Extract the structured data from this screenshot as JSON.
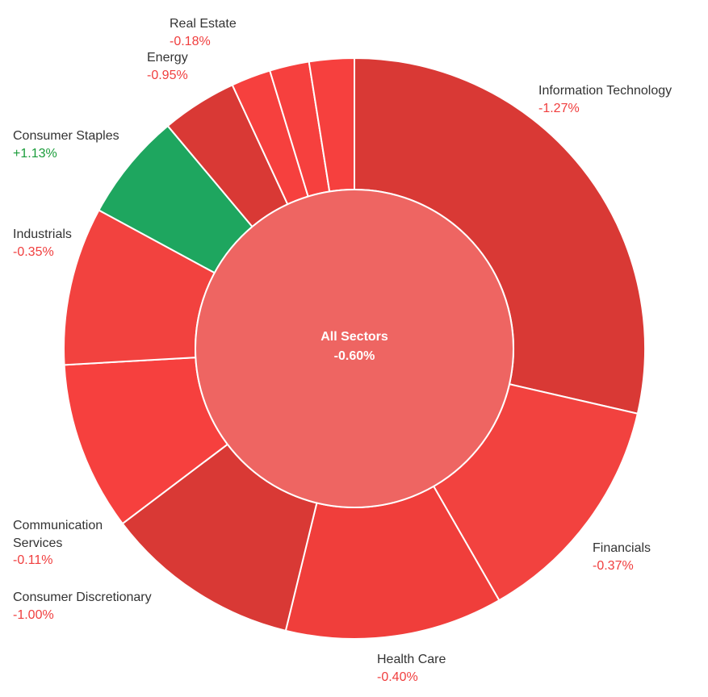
{
  "chart_data": {
    "type": "pie",
    "center": {
      "label": "All Sectors",
      "value": "-0.60%",
      "color": "#ee6562"
    },
    "colors": {
      "positive": "#1ea65f",
      "negative_text": "#f03e3e",
      "positive_text": "#1a9c3a"
    },
    "segments": [
      {
        "name": "Information Technology",
        "value_text": "-1.27%",
        "change": -1.27,
        "weight": 28.6,
        "color": "#d93935"
      },
      {
        "name": "Financials",
        "value_text": "-0.37%",
        "change": -0.37,
        "weight": 13.1,
        "color": "#f2423f"
      },
      {
        "name": "Health Care",
        "value_text": "-0.40%",
        "change": -0.4,
        "weight": 12.1,
        "color": "#f03e3b"
      },
      {
        "name": "Consumer Discretionary",
        "value_text": "-1.00%",
        "change": -1.0,
        "weight": 10.9,
        "color": "#d93935"
      },
      {
        "name": "Communication Services",
        "value_text": "-0.11%",
        "change": -0.11,
        "weight": 9.4,
        "color": "#f6403e"
      },
      {
        "name": "Industrials",
        "value_text": "-0.35%",
        "change": -0.35,
        "weight": 8.8,
        "color": "#f2423f"
      },
      {
        "name": "Consumer Staples",
        "value_text": "+1.13%",
        "change": 1.13,
        "weight": 6.0,
        "color": "#1ea65f"
      },
      {
        "name": "Energy",
        "value_text": "-0.95%",
        "change": -0.95,
        "weight": 4.2,
        "color": "#d93935"
      },
      {
        "name": "",
        "value_text": "",
        "change": null,
        "weight": 2.2,
        "color": "#f6403e"
      },
      {
        "name": "",
        "value_text": "",
        "change": null,
        "weight": 2.2,
        "color": "#f6403e"
      },
      {
        "name": "Real Estate",
        "value_text": "-0.18%",
        "change": -0.18,
        "weight": 2.5,
        "color": "#f6403e"
      }
    ]
  }
}
